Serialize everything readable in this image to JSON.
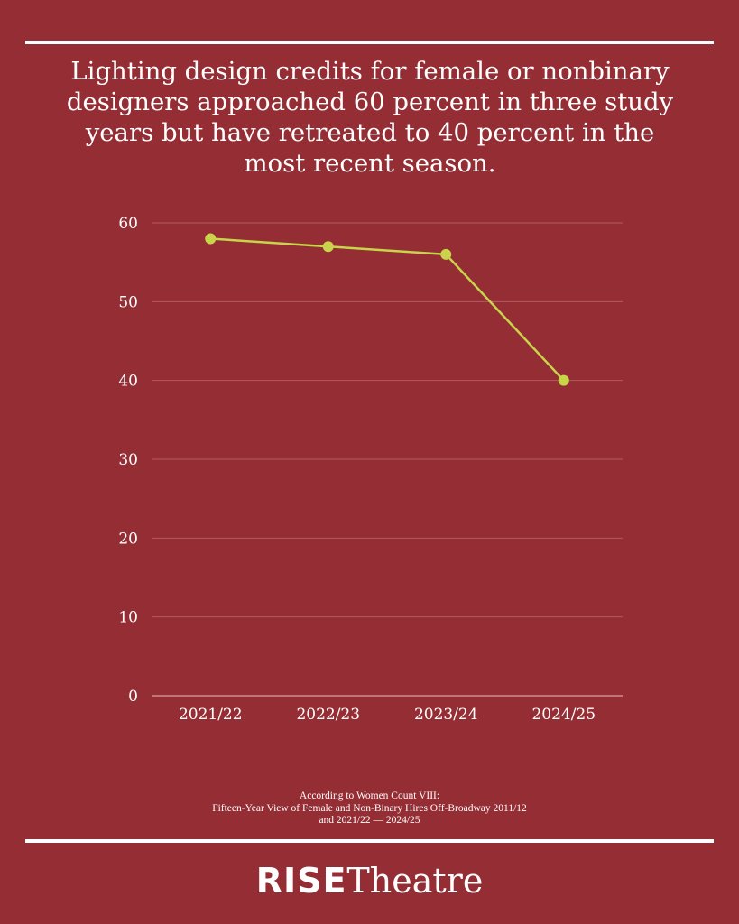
{
  "chart_data": {
    "type": "line",
    "title": "Lighting design credits for female or nonbinary designers approached 60 percent in three study years but have retreated to 40 percent in the most recent season.",
    "categories": [
      "2021/22",
      "2022/23",
      "2023/24",
      "2024/25"
    ],
    "values": [
      58,
      57,
      56,
      40
    ],
    "ylim": [
      0,
      60
    ],
    "yticks": [
      0,
      10,
      20,
      30,
      40,
      50,
      60
    ],
    "grid": true,
    "line_color": "#c8d44a",
    "grid_color": "#b55a60",
    "background": "#952e34"
  },
  "source": {
    "line1": "According to Women Count VIII:",
    "line2": "Fifteen-Year View of Female and Non-Binary Hires Off-Broadway 2011/12",
    "line3": "and 2021/22 — 2024/25"
  },
  "logo": {
    "bold": "RISE",
    "light": "Theatre"
  }
}
